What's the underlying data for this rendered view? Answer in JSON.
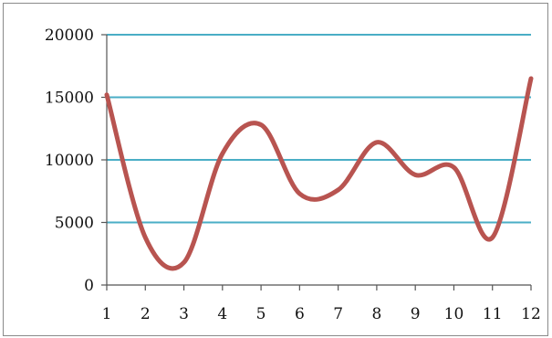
{
  "chart_data": {
    "type": "line",
    "x": [
      1,
      2,
      3,
      4,
      5,
      6,
      7,
      8,
      9,
      10,
      11,
      12
    ],
    "series": [
      {
        "values": [
          15200,
          3800,
          1800,
          10500,
          12800,
          7300,
          7600,
          11400,
          8800,
          9400,
          3800,
          16500
        ]
      }
    ],
    "xlim": [
      1,
      12
    ],
    "ylim": [
      0,
      20000
    ],
    "yticks": [
      "0",
      "5000",
      "10000",
      "15000",
      "20000"
    ],
    "xticks": [
      "1",
      "2",
      "3",
      "4",
      "5",
      "6",
      "7",
      "8",
      "9",
      "10",
      "11",
      "12"
    ],
    "grid": "horizontal",
    "smooth": true,
    "colors": {
      "line": "#b85450",
      "grid": "#4aaec6",
      "axis": "#555555"
    }
  }
}
